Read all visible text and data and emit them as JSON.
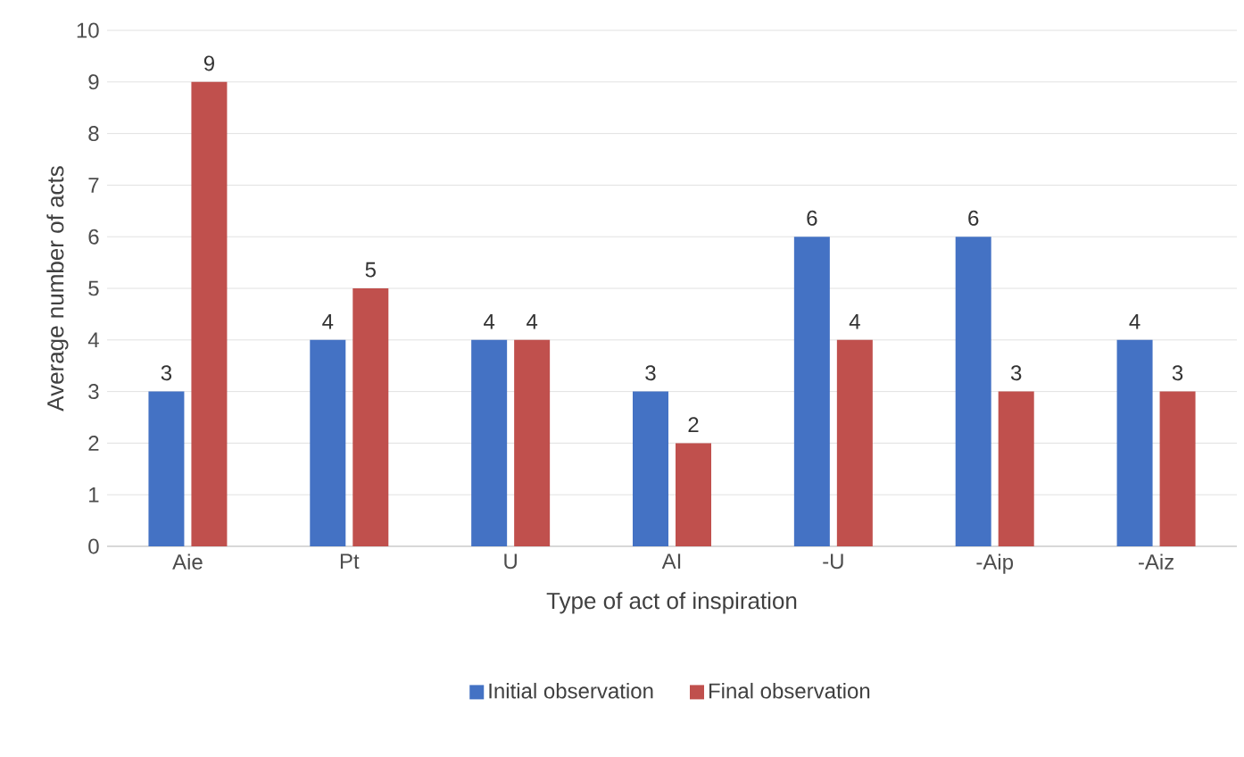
{
  "chart_data": {
    "type": "bar",
    "xlabel": "Type of act of inspiration",
    "ylabel": "Average number of acts",
    "categories": [
      "Aie",
      "Pt",
      "U",
      "AI",
      "-U",
      "-Aip",
      "-Aiz"
    ],
    "series": [
      {
        "name": "Initial observation",
        "color": "#4472c4",
        "values": [
          3,
          4,
          4,
          3,
          6,
          6,
          4
        ]
      },
      {
        "name": "Final observation",
        "color": "#c0504d",
        "values": [
          9,
          5,
          4,
          2,
          4,
          3,
          3
        ]
      }
    ],
    "ylim": [
      0,
      10
    ],
    "yticks": [
      0,
      1,
      2,
      3,
      4,
      5,
      6,
      7,
      8,
      9,
      10
    ],
    "grid": "y",
    "legend": "bottom",
    "data_labels": true
  }
}
